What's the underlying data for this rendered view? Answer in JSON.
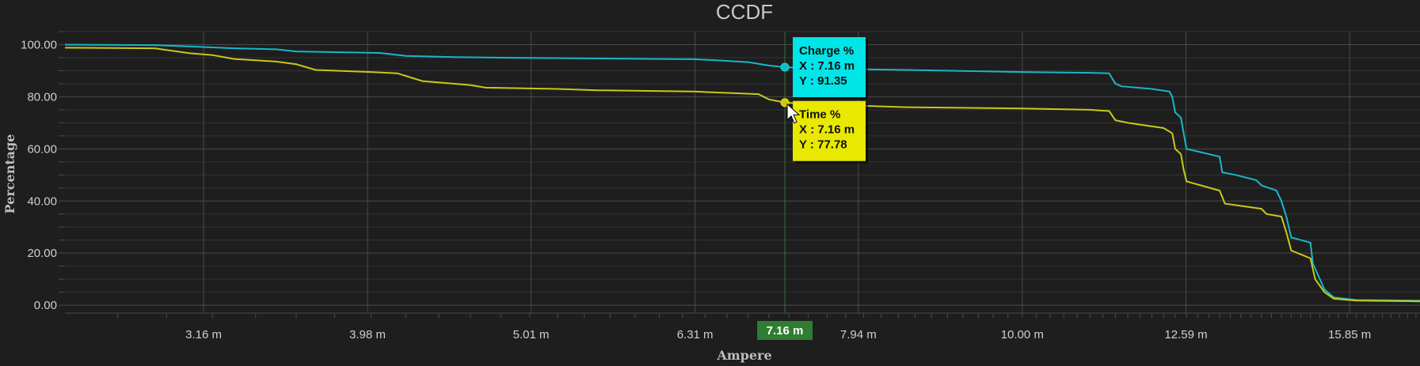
{
  "chart_data": {
    "type": "line",
    "title": "CCDF",
    "xlabel": "Ampere",
    "ylabel": "Percentage",
    "x_scale": "log",
    "xlim": [
      2.6,
      17.5
    ],
    "ylim": [
      -3,
      105
    ],
    "y_ticks": [
      0,
      20,
      40,
      60,
      80,
      100
    ],
    "y_tick_labels": [
      "0.00",
      "20.00",
      "40.00",
      "60.00",
      "80.00",
      "100.00"
    ],
    "x_ticks": [
      3.16,
      3.98,
      5.01,
      6.31,
      7.94,
      10.0,
      12.59,
      15.85
    ],
    "x_tick_labels": [
      "3.16 m",
      "3.98 m",
      "5.01 m",
      "6.31 m",
      "7.94 m",
      "10.00 m",
      "12.59 m",
      "15.85 m"
    ],
    "grid": true,
    "series": [
      {
        "name": "Charge %",
        "color": "#17b8c4",
        "points": [
          [
            2.6,
            100.0
          ],
          [
            2.95,
            99.8
          ],
          [
            3.1,
            99.3
          ],
          [
            3.3,
            98.6
          ],
          [
            3.5,
            98.2
          ],
          [
            3.6,
            97.4
          ],
          [
            3.9,
            97.0
          ],
          [
            4.05,
            96.8
          ],
          [
            4.2,
            95.7
          ],
          [
            4.5,
            95.2
          ],
          [
            5.0,
            94.9
          ],
          [
            6.0,
            94.5
          ],
          [
            6.3,
            94.4
          ],
          [
            6.5,
            94.0
          ],
          [
            6.8,
            93.3
          ],
          [
            7.0,
            92.0
          ],
          [
            7.16,
            91.35
          ],
          [
            7.5,
            90.8
          ],
          [
            8.5,
            90.3
          ],
          [
            10.0,
            89.5
          ],
          [
            11.0,
            89.2
          ],
          [
            11.3,
            89.0
          ],
          [
            11.4,
            85.0
          ],
          [
            11.5,
            84.0
          ],
          [
            12.0,
            83.0
          ],
          [
            12.3,
            82.0
          ],
          [
            12.35,
            80.0
          ],
          [
            12.4,
            74.0
          ],
          [
            12.5,
            72.0
          ],
          [
            12.55,
            66.0
          ],
          [
            12.6,
            60.0
          ],
          [
            12.8,
            59.0
          ],
          [
            13.2,
            57.0
          ],
          [
            13.25,
            51.0
          ],
          [
            13.5,
            50.0
          ],
          [
            13.9,
            48.0
          ],
          [
            14.0,
            46.0
          ],
          [
            14.3,
            44.0
          ],
          [
            14.4,
            40.0
          ],
          [
            14.5,
            34.0
          ],
          [
            14.6,
            26.0
          ],
          [
            14.8,
            25.0
          ],
          [
            15.0,
            24.0
          ],
          [
            15.05,
            16.0
          ],
          [
            15.2,
            10.0
          ],
          [
            15.3,
            6.0
          ],
          [
            15.5,
            3.0
          ],
          [
            16.0,
            2.0
          ],
          [
            17.5,
            1.8
          ]
        ]
      },
      {
        "name": "Time %",
        "color": "#c9c917",
        "points": [
          [
            2.6,
            98.8
          ],
          [
            2.95,
            98.6
          ],
          [
            3.1,
            96.7
          ],
          [
            3.2,
            96.0
          ],
          [
            3.3,
            94.5
          ],
          [
            3.5,
            93.5
          ],
          [
            3.6,
            92.5
          ],
          [
            3.7,
            90.3
          ],
          [
            4.0,
            89.5
          ],
          [
            4.15,
            89.0
          ],
          [
            4.3,
            86.0
          ],
          [
            4.6,
            84.5
          ],
          [
            4.7,
            83.5
          ],
          [
            5.2,
            83.0
          ],
          [
            5.5,
            82.5
          ],
          [
            6.3,
            82.0
          ],
          [
            6.6,
            81.5
          ],
          [
            6.9,
            81.0
          ],
          [
            7.0,
            79.0
          ],
          [
            7.16,
            77.78
          ],
          [
            7.5,
            77.0
          ],
          [
            8.0,
            76.5
          ],
          [
            8.5,
            76.0
          ],
          [
            10.0,
            75.5
          ],
          [
            11.0,
            75.0
          ],
          [
            11.3,
            74.5
          ],
          [
            11.4,
            71.0
          ],
          [
            11.6,
            70.0
          ],
          [
            12.2,
            68.0
          ],
          [
            12.35,
            66.0
          ],
          [
            12.4,
            60.0
          ],
          [
            12.5,
            58.0
          ],
          [
            12.55,
            52.0
          ],
          [
            12.6,
            47.5
          ],
          [
            13.2,
            44.0
          ],
          [
            13.3,
            39.0
          ],
          [
            14.0,
            37.0
          ],
          [
            14.1,
            35.0
          ],
          [
            14.4,
            34.0
          ],
          [
            14.5,
            28.0
          ],
          [
            14.6,
            21.0
          ],
          [
            15.0,
            18.0
          ],
          [
            15.1,
            10.0
          ],
          [
            15.3,
            5.0
          ],
          [
            15.5,
            2.5
          ],
          [
            16.0,
            1.8
          ],
          [
            17.5,
            1.5
          ]
        ]
      }
    ],
    "tooltips": [
      {
        "series": "Charge %",
        "x_label": "X : 7.16 m",
        "y_label": "Y : 91.35",
        "x": 7.16,
        "y": 91.35,
        "bg": "#00e5e8"
      },
      {
        "series": "Time %",
        "x_label": "X : 7.16 m",
        "y_label": "Y : 77.78",
        "x": 7.16,
        "y": 77.78,
        "bg": "#e8e800"
      }
    ],
    "crosshair": {
      "x": 7.16,
      "label": "7.16 m",
      "bg": "#2e7d32"
    }
  }
}
